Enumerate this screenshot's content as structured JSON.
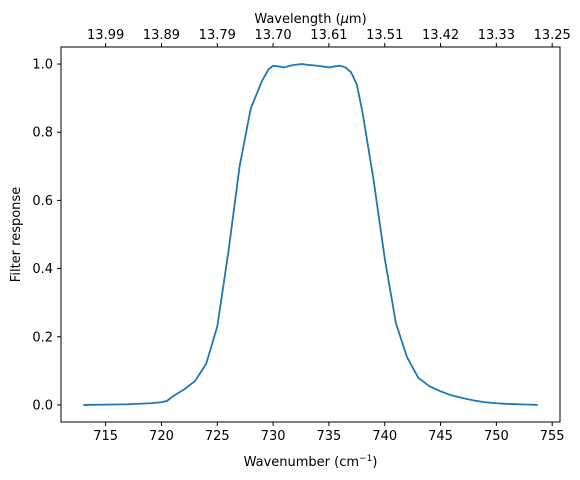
{
  "chart_data": {
    "type": "line",
    "xlabel": "Wavenumber (cm",
    "xlabel_sup": "−1",
    "xlabel_tail": ")",
    "ylabel": "Filter response",
    "top_xlabel": "Wavelength (",
    "top_xlabel_mu": "μ",
    "top_xlabel_tail": "m)",
    "xlim": [
      711,
      755.7
    ],
    "ylim": [
      -0.05,
      1.05
    ],
    "xticks": [
      715,
      720,
      725,
      730,
      735,
      740,
      745,
      750,
      755
    ],
    "xtick_labels": [
      "715",
      "720",
      "725",
      "730",
      "735",
      "740",
      "745",
      "750",
      "755"
    ],
    "yticks": [
      0.0,
      0.2,
      0.4,
      0.6,
      0.8,
      1.0
    ],
    "ytick_labels": [
      "0.0",
      "0.2",
      "0.4",
      "0.6",
      "0.8",
      "1.0"
    ],
    "top_xtick_labels": [
      "13.99",
      "13.89",
      "13.79",
      "13.70",
      "13.61",
      "13.51",
      "13.42",
      "13.33",
      "13.25"
    ],
    "line_color": "#1f77b4",
    "series": [
      {
        "x": [
          713,
          715,
          717,
          719,
          720,
          720.5,
          721,
          721.5,
          722,
          723,
          724,
          725,
          726,
          727,
          728,
          729,
          729.6,
          730,
          730.5,
          731,
          731.5,
          732,
          732.6,
          733,
          734,
          735,
          735.5,
          736,
          736.5,
          737,
          737.5,
          738,
          739,
          740,
          741,
          742,
          743,
          744,
          745,
          746,
          747,
          748,
          749,
          750,
          751,
          752,
          753,
          753.7
        ],
        "y": [
          0.0,
          0.001,
          0.002,
          0.005,
          0.008,
          0.012,
          0.025,
          0.035,
          0.045,
          0.07,
          0.12,
          0.23,
          0.45,
          0.7,
          0.87,
          0.95,
          0.985,
          0.995,
          0.993,
          0.99,
          0.995,
          0.998,
          1.0,
          0.998,
          0.995,
          0.99,
          0.993,
          0.995,
          0.99,
          0.975,
          0.94,
          0.86,
          0.66,
          0.43,
          0.24,
          0.14,
          0.08,
          0.055,
          0.04,
          0.028,
          0.02,
          0.013,
          0.008,
          0.005,
          0.003,
          0.002,
          0.001,
          0.0
        ]
      }
    ]
  }
}
